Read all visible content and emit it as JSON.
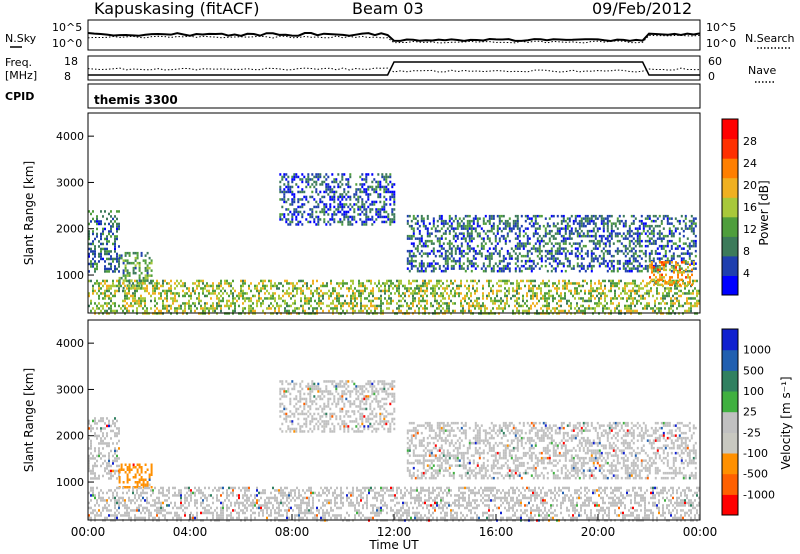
{
  "header": {
    "station": "Kapuskasing (fitACF)",
    "beam": "Beam 03",
    "date": "09/Feb/2012"
  },
  "status_panels": {
    "nsky_label": "N.Sky",
    "nsky_ticks": [
      "10^5",
      "10^0"
    ],
    "nsearch_label": "N.Search",
    "nsearch_ticks": [
      "10^5",
      "10^0"
    ],
    "freq_label": "Freq.",
    "freq_unit": "[MHz]",
    "freq_ticks": [
      "18",
      "8"
    ],
    "nave_label": "Nave",
    "nave_ticks": [
      "60",
      "0"
    ],
    "cpid_label": "CPID",
    "cpid_value": "themis 3300"
  },
  "colors": {
    "power_scale": [
      "#0000ff",
      "#1f3fae",
      "#3c7a5a",
      "#4f9e3c",
      "#a8c83a",
      "#f0b020",
      "#ff7f00",
      "#ff3000",
      "#ff0000"
    ],
    "velocity_scale": [
      "#1020d0",
      "#205fb0",
      "#308060",
      "#40b040",
      "#c0c0c0",
      "#c8c8c0",
      "#ff9000",
      "#ff6000",
      "#ff0000"
    ]
  },
  "chart_data": [
    {
      "type": "heatmap",
      "name": "power",
      "ylabel": "Slant Range [km]",
      "ylim": [
        180,
        4500
      ],
      "xlim": [
        0,
        24
      ],
      "yticks": [
        "1000",
        "2000",
        "3000",
        "4000"
      ],
      "colorbar_label": "Power [dB]",
      "colorbar_ticks": [
        "4",
        "8",
        "12",
        "16",
        "20",
        "24",
        "28"
      ],
      "colorbar_range": [
        0,
        30
      ],
      "regions": [
        {
          "t0": 0.0,
          "t1": 1.2,
          "r0": 1100,
          "r1": 2400,
          "value": 7
        },
        {
          "t0": 1.2,
          "t1": 2.5,
          "r0": 700,
          "r1": 1500,
          "value": 10
        },
        {
          "t0": 7.5,
          "t1": 12.0,
          "r0": 2100,
          "r1": 3200,
          "value": 5
        },
        {
          "t0": 12.5,
          "t1": 23.8,
          "r0": 1100,
          "r1": 2300,
          "value": 6
        },
        {
          "t0": 0.0,
          "t1": 24.0,
          "r0": 180,
          "r1": 900,
          "value": 14
        },
        {
          "t0": 22.0,
          "t1": 23.8,
          "r0": 800,
          "r1": 1300,
          "value": 20
        }
      ]
    },
    {
      "type": "heatmap",
      "name": "velocity",
      "ylabel": "Slant Range [km]",
      "xlabel": "Time UT",
      "ylim": [
        180,
        4500
      ],
      "xlim": [
        0,
        24
      ],
      "yticks": [
        "1000",
        "2000",
        "3000",
        "4000"
      ],
      "xticks": [
        "00:00",
        "04:00",
        "08:00",
        "12:00",
        "16:00",
        "20:00",
        "00:00"
      ],
      "colorbar_label": "Velocity [m s⁻¹]",
      "colorbar_ticks": [
        "1000",
        "500",
        "100",
        "25",
        "-25",
        "-100",
        "-500",
        "-1000"
      ],
      "regions": [
        {
          "t0": 0.0,
          "t1": 1.2,
          "r0": 1100,
          "r1": 2400,
          "value": 0
        },
        {
          "t0": 1.2,
          "t1": 2.5,
          "r0": 900,
          "r1": 1400,
          "value": -200
        },
        {
          "t0": 7.5,
          "t1": 12.0,
          "r0": 2100,
          "r1": 3200,
          "value": 0
        },
        {
          "t0": 12.5,
          "t1": 23.8,
          "r0": 1100,
          "r1": 2300,
          "value": 0
        },
        {
          "t0": 0.0,
          "t1": 24.0,
          "r0": 180,
          "r1": 900,
          "value": 0
        }
      ]
    }
  ]
}
